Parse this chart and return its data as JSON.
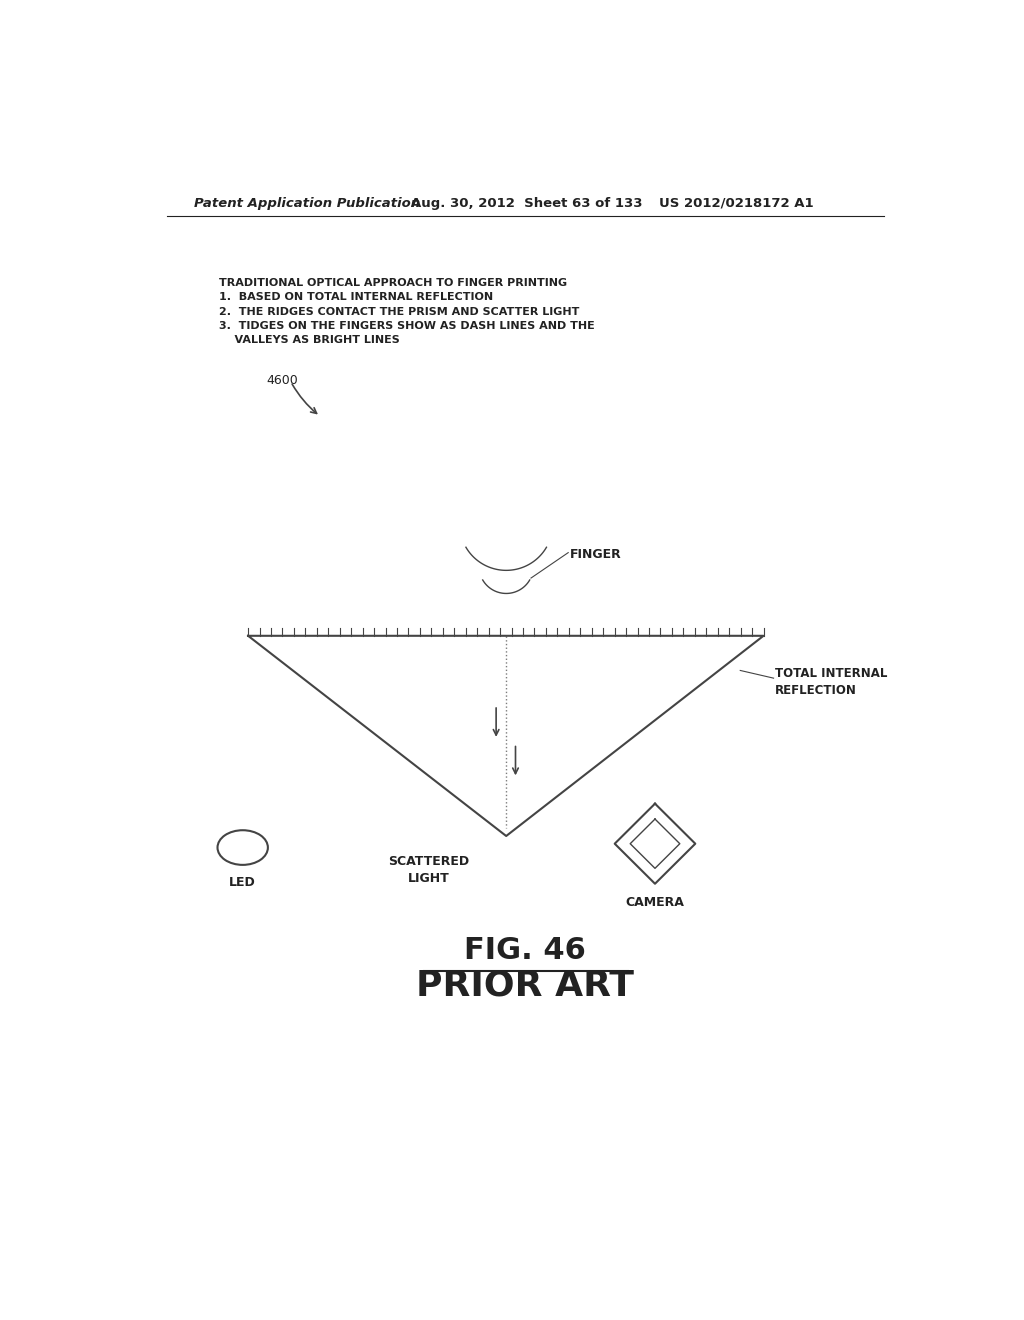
{
  "header_left": "Patent Application Publication",
  "header_mid": "Aug. 30, 2012  Sheet 63 of 133",
  "header_right": "US 2012/0218172 A1",
  "annotation_text": "TRADITIONAL OPTICAL APPROACH TO FINGER PRINTING\n1.  BASED ON TOTAL INTERNAL REFLECTION\n2.  THE RIDGES CONTACT THE PRISM AND SCATTER LIGHT\n3.  TIDGES ON THE FINGERS SHOW AS DASH LINES AND THE\n    VALLEYS AS BRIGHT LINES",
  "label_4600": "4600",
  "label_finger": "FINGER",
  "label_tir": "TOTAL INTERNAL\nREFLECTION",
  "label_scattered": "SCATTERED\nLIGHT",
  "label_led": "LED",
  "label_camera": "CAMERA",
  "fig_label": "FIG. 46",
  "fig_sublabel": "PRIOR ART",
  "bg_color": "#ffffff",
  "line_color": "#444444",
  "text_color": "#222222"
}
